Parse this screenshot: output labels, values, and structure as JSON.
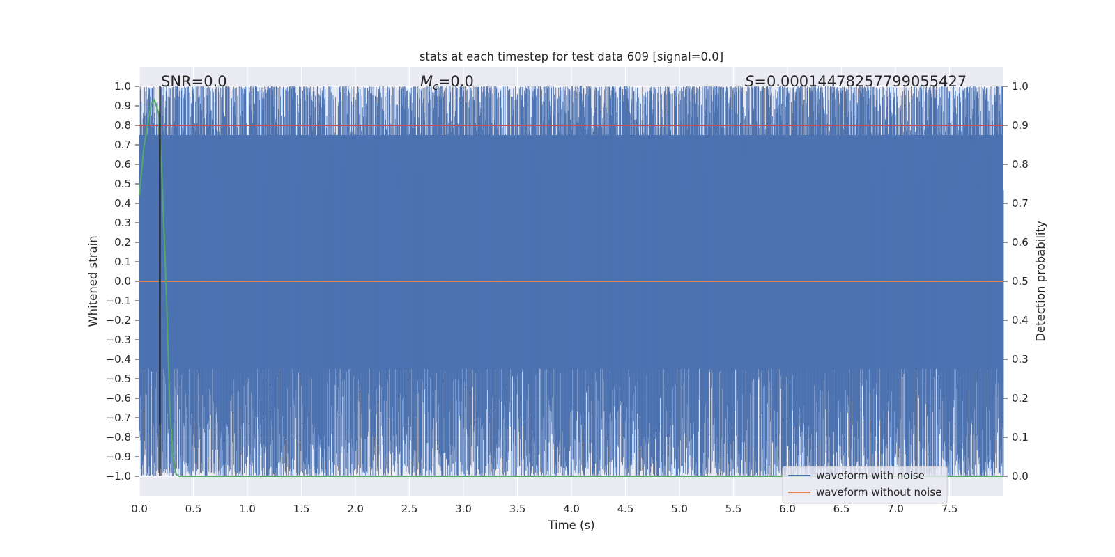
{
  "chart_data": {
    "type": "line",
    "title": "stats at each timestep for test data 609 [signal=0.0]",
    "xlabel": "Time (s)",
    "ylabel": "Whitened strain",
    "ylabel_right": "Detection probability",
    "xlim": [
      0.0,
      8.0
    ],
    "ylim": [
      -1.1,
      1.1
    ],
    "ylim_right": [
      -0.05,
      1.05
    ],
    "x_ticks": [
      "0.0",
      "0.5",
      "1.0",
      "1.5",
      "2.0",
      "2.5",
      "3.0",
      "3.5",
      "4.0",
      "4.5",
      "5.0",
      "5.5",
      "6.0",
      "6.5",
      "7.0",
      "7.5"
    ],
    "y_ticks": [
      "1.0",
      "0.9",
      "0.8",
      "0.7",
      "0.6",
      "0.5",
      "0.4",
      "0.3",
      "0.2",
      "0.1",
      "0.0",
      "−0.1",
      "−0.2",
      "−0.3",
      "−0.4",
      "−0.5",
      "−0.6",
      "−0.7",
      "−0.8",
      "−0.9",
      "−1.0"
    ],
    "y_ticks_right": [
      "1.0",
      "0.9",
      "0.8",
      "0.7",
      "0.6",
      "0.5",
      "0.4",
      "0.3",
      "0.2",
      "0.1",
      "0.0"
    ],
    "grid": true,
    "legend_position": "bottom-right",
    "annotations": {
      "snr": "SNR=0.0",
      "mc_symbol": "M",
      "mc_sub": "c",
      "mc_value": "=0.0",
      "s_symbol": "S",
      "s_value": "=0.00014478257799055427"
    },
    "series": [
      {
        "name": "waveform with noise",
        "color": "#4c72b0",
        "description": "dense noise filling the strain range [-1, 1] across 0–8 s"
      },
      {
        "name": "waveform without noise",
        "color": "#dd8452",
        "x": [
          0.0,
          8.0
        ],
        "y": [
          0.0,
          0.0
        ]
      },
      {
        "color": "#55a868",
        "axis": "right",
        "x": [
          0.0,
          0.04,
          0.08,
          0.11,
          0.14,
          0.18,
          0.21,
          0.25,
          0.28,
          0.31,
          0.34,
          0.37,
          8.0
        ],
        "y": [
          0.72,
          0.84,
          0.91,
          0.955,
          0.965,
          0.93,
          0.76,
          0.47,
          0.19,
          0.05,
          0.005,
          0.0,
          0.0
        ]
      },
      {
        "color": "#c44e52",
        "axis": "right",
        "x": [
          0.0,
          8.0
        ],
        "y": [
          0.9,
          0.9
        ]
      }
    ],
    "vertical_marker": {
      "x": 0.19,
      "color": "#000000"
    },
    "colors": {
      "background": "#eaeaf2",
      "grid": "#ffffff",
      "text": "#262626"
    }
  }
}
